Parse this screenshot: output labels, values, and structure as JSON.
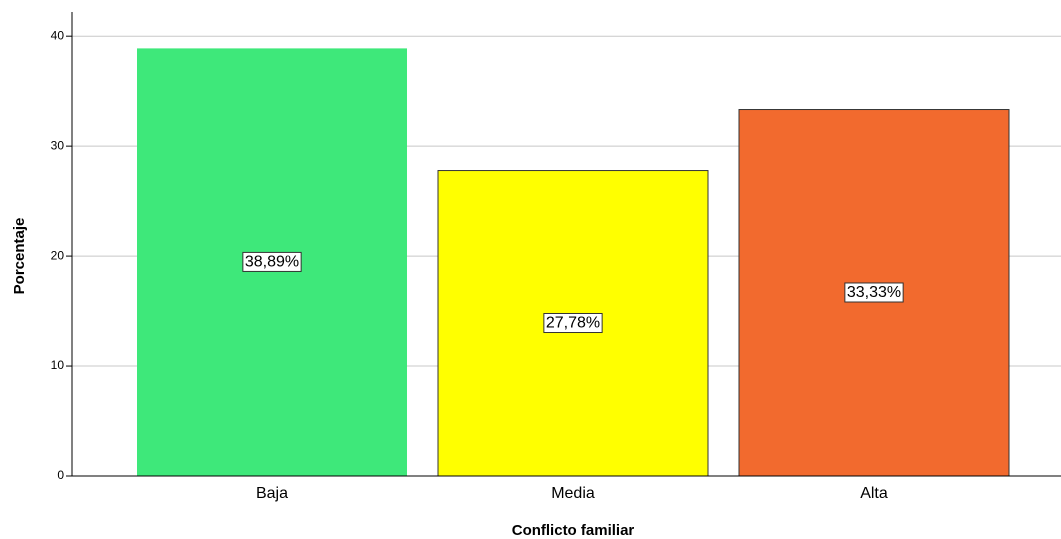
{
  "chart_data": {
    "type": "bar",
    "xlabel": "Conflicto familiar",
    "ylabel": "Porcentaje",
    "categories": [
      "Baja",
      "Media",
      "Alta"
    ],
    "values": [
      38.89,
      27.78,
      33.33
    ],
    "value_labels": [
      "38,89%",
      "27,78%",
      "33,33%"
    ],
    "colors": [
      "#3ee87a",
      "#ffff00",
      "#f26a2e"
    ],
    "ylim": [
      0,
      42.2
    ],
    "yticks": [
      0,
      10,
      20,
      30,
      40
    ],
    "grid": true
  }
}
